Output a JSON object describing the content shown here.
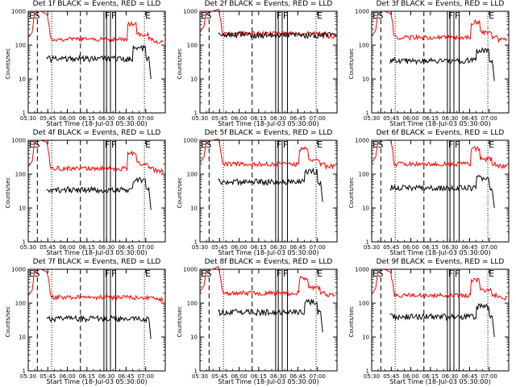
{
  "chart_data": [
    {
      "type": "line",
      "title": "Det 1f BLACK = Events, RED = LLD",
      "xlabel": "Start Time (18-Jul-03 05:30:00)",
      "ylabel": "Counts/sec",
      "x_ticks": [
        "05:30",
        "05:45",
        "06:00",
        "06:15",
        "06:30",
        "06:45",
        "07:00"
      ],
      "y_ticks": [
        "1",
        "10",
        "100",
        "1000"
      ],
      "xlim_min": [
        0,
        105
      ],
      "ylim": [
        1,
        1000
      ],
      "y_scale": "log",
      "markers": [
        {
          "label": "E",
          "t": 0
        },
        {
          "label": "S",
          "t": 4
        }
      ],
      "vlines_dashed": [
        7,
        40
      ],
      "vlines_dotted": [
        18,
        89
      ],
      "vlines_solid": [
        58,
        60,
        63,
        67
      ],
      "end_label": {
        "label": "E",
        "t": 89
      },
      "red_level": 150,
      "black_level": 40,
      "red_peak_t": 79,
      "black_peak_t": 82,
      "black_end_t": 93,
      "series": [
        {
          "name": "Events",
          "color": "#000000"
        },
        {
          "name": "LLD",
          "color": "#ff0000"
        }
      ]
    },
    {
      "type": "line",
      "title": "Det 2f BLACK = Events, RED = LLD",
      "xlabel": "Start Time (18-Jul-03 05:30:00)",
      "ylabel": "Counts/sec",
      "x_ticks": [
        "05:30",
        "05:45",
        "06:00",
        "06:15",
        "06:30",
        "06:45",
        "07:00"
      ],
      "y_ticks": [
        "1",
        "10",
        "100",
        "1000"
      ],
      "xlim_min": [
        0,
        105
      ],
      "ylim": [
        1,
        1000
      ],
      "y_scale": "log",
      "markers": [
        {
          "label": "E",
          "t": 0
        },
        {
          "label": "S",
          "t": 4
        }
      ],
      "vlines_dashed": [
        7,
        40
      ],
      "vlines_dotted": [
        18,
        89
      ],
      "vlines_solid": [
        58,
        60,
        63,
        67
      ],
      "end_label": {
        "label": "E",
        "t": 89
      },
      "red_level": 220,
      "black_level": 200,
      "red_peak_t": 0,
      "black_peak_t": 0,
      "black_end_t": 105,
      "series": [
        {
          "name": "Events",
          "color": "#000000"
        },
        {
          "name": "LLD",
          "color": "#ff0000"
        }
      ]
    },
    {
      "type": "line",
      "title": "Det 3f BLACK = Events, RED = LLD",
      "xlabel": "Start Time (18-Jul-03 05:30:00)",
      "ylabel": "Counts/sec",
      "x_ticks": [
        "05:30",
        "05:45",
        "06:00",
        "06:15",
        "06:30",
        "06:45",
        "07:00"
      ],
      "y_ticks": [
        "1",
        "10",
        "100",
        "1000"
      ],
      "xlim_min": [
        0,
        105
      ],
      "ylim": [
        1,
        1000
      ],
      "y_scale": "log",
      "markers": [
        {
          "label": "E",
          "t": 0
        },
        {
          "label": "S",
          "t": 4
        }
      ],
      "vlines_dashed": [
        7,
        40
      ],
      "vlines_dotted": [
        18,
        89
      ],
      "vlines_solid": [
        58,
        60,
        63,
        67
      ],
      "end_label": {
        "label": "E",
        "t": 89
      },
      "red_level": 170,
      "black_level": 35,
      "red_peak_t": 79,
      "black_peak_t": 82,
      "black_end_t": 93,
      "series": [
        {
          "name": "Events",
          "color": "#000000"
        },
        {
          "name": "LLD",
          "color": "#ff0000"
        }
      ]
    },
    {
      "type": "line",
      "title": "Det 4f BLACK = Events, RED = LLD",
      "xlabel": "Start Time (18-Jul-03 05:30:00)",
      "ylabel": "Counts/sec",
      "x_ticks": [
        "05:30",
        "05:45",
        "06:00",
        "06:15",
        "06:30",
        "06:45",
        "07:00"
      ],
      "y_ticks": [
        "1",
        "10",
        "100",
        "1000"
      ],
      "xlim_min": [
        0,
        105
      ],
      "ylim": [
        1,
        1000
      ],
      "y_scale": "log",
      "markers": [
        {
          "label": "E",
          "t": 0
        },
        {
          "label": "S",
          "t": 4
        }
      ],
      "vlines_dashed": [
        7,
        40
      ],
      "vlines_dotted": [
        18,
        89
      ],
      "vlines_solid": [
        58,
        60,
        63,
        67
      ],
      "end_label": {
        "label": "E",
        "t": 89
      },
      "red_level": 150,
      "black_level": 35,
      "red_peak_t": 79,
      "black_peak_t": 82,
      "black_end_t": 93,
      "series": [
        {
          "name": "Events",
          "color": "#000000"
        },
        {
          "name": "LLD",
          "color": "#ff0000"
        }
      ]
    },
    {
      "type": "line",
      "title": "Det 5f BLACK = Events, RED = LLD",
      "xlabel": "Start Time (18-Jul-03 05:30:00)",
      "ylabel": "Counts/sec",
      "x_ticks": [
        "05:30",
        "05:45",
        "06:00",
        "06:15",
        "06:30",
        "06:45",
        "07:00"
      ],
      "y_ticks": [
        "1",
        "10",
        "100",
        "1000"
      ],
      "xlim_min": [
        0,
        105
      ],
      "ylim": [
        1,
        1000
      ],
      "y_scale": "log",
      "markers": [
        {
          "label": "E",
          "t": 0
        },
        {
          "label": "S",
          "t": 4
        }
      ],
      "vlines_dashed": [
        7,
        40
      ],
      "vlines_dotted": [
        18,
        89
      ],
      "vlines_solid": [
        58,
        60,
        63,
        67
      ],
      "end_label": {
        "label": "E",
        "t": 89
      },
      "red_level": 200,
      "black_level": 60,
      "red_peak_t": 79,
      "black_peak_t": 82,
      "black_end_t": 93,
      "series": [
        {
          "name": "Events",
          "color": "#000000"
        },
        {
          "name": "LLD",
          "color": "#ff0000"
        }
      ]
    },
    {
      "type": "line",
      "title": "Det 6f BLACK = Events, RED = LLD",
      "xlabel": "Start Time (18-Jul-03 05:30:00)",
      "ylabel": "Counts/sec",
      "x_ticks": [
        "05:30",
        "05:45",
        "06:00",
        "06:15",
        "06:30",
        "06:45",
        "07:00"
      ],
      "y_ticks": [
        "1",
        "10",
        "100",
        "1000"
      ],
      "xlim_min": [
        0,
        105
      ],
      "ylim": [
        1,
        1000
      ],
      "y_scale": "log",
      "markers": [
        {
          "label": "E",
          "t": 0
        },
        {
          "label": "S",
          "t": 4
        }
      ],
      "vlines_dashed": [
        7,
        40
      ],
      "vlines_dotted": [
        18,
        89
      ],
      "vlines_solid": [
        58,
        60,
        63,
        67
      ],
      "end_label": {
        "label": "E",
        "t": 89
      },
      "red_level": 200,
      "black_level": 40,
      "red_peak_t": 79,
      "black_peak_t": 82,
      "black_end_t": 93,
      "series": [
        {
          "name": "Events",
          "color": "#000000"
        },
        {
          "name": "LLD",
          "color": "#ff0000"
        }
      ]
    },
    {
      "type": "line",
      "title": "Det 7f BLACK = Events, RED = LLD",
      "xlabel": "Start Time (18-Jul-03 05:30:00)",
      "ylabel": "Counts/sec",
      "x_ticks": [
        "05:30",
        "05:45",
        "06:00",
        "06:15",
        "06:30",
        "06:45",
        "07:00"
      ],
      "y_ticks": [
        "1",
        "10",
        "100",
        "1000"
      ],
      "xlim_min": [
        0,
        105
      ],
      "ylim": [
        1,
        1000
      ],
      "y_scale": "log",
      "markers": [
        {
          "label": "E",
          "t": 0
        },
        {
          "label": "S",
          "t": 4
        }
      ],
      "vlines_dashed": [
        7,
        40
      ],
      "vlines_dotted": [
        18,
        89
      ],
      "vlines_solid": [
        58,
        60,
        63,
        67
      ],
      "end_label": {
        "label": "E",
        "t": 89
      },
      "red_level": 150,
      "black_level": 35,
      "red_peak_t": 0,
      "black_peak_t": 0,
      "black_end_t": 93,
      "series": [
        {
          "name": "Events",
          "color": "#000000"
        },
        {
          "name": "LLD",
          "color": "#ff0000"
        }
      ]
    },
    {
      "type": "line",
      "title": "Det 8f BLACK = Events, RED = LLD",
      "xlabel": "Start Time (18-Jul-03 05:30:00)",
      "ylabel": "Counts/sec",
      "x_ticks": [
        "05:30",
        "05:45",
        "06:00",
        "06:15",
        "06:30",
        "06:45",
        "07:00"
      ],
      "y_ticks": [
        "1",
        "10",
        "100",
        "1000"
      ],
      "xlim_min": [
        0,
        105
      ],
      "ylim": [
        1,
        1000
      ],
      "y_scale": "log",
      "markers": [
        {
          "label": "E",
          "t": 0
        },
        {
          "label": "S",
          "t": 4
        }
      ],
      "vlines_dashed": [
        7,
        40
      ],
      "vlines_dotted": [
        18,
        89
      ],
      "vlines_solid": [
        58,
        60,
        63,
        67
      ],
      "end_label": {
        "label": "E",
        "t": 89
      },
      "red_level": 200,
      "black_level": 55,
      "red_peak_t": 79,
      "black_peak_t": 82,
      "black_end_t": 93,
      "series": [
        {
          "name": "Events",
          "color": "#000000"
        },
        {
          "name": "LLD",
          "color": "#ff0000"
        }
      ]
    },
    {
      "type": "line",
      "title": "Det 9f BLACK = Events, RED = LLD",
      "xlabel": "Start Time (18-Jul-03 05:30:00)",
      "ylabel": "Counts/sec",
      "x_ticks": [
        "05:30",
        "05:45",
        "06:00",
        "06:15",
        "06:30",
        "06:45",
        "07:00"
      ],
      "y_ticks": [
        "1",
        "10",
        "100",
        "1000"
      ],
      "xlim_min": [
        0,
        105
      ],
      "ylim": [
        1,
        1000
      ],
      "y_scale": "log",
      "markers": [
        {
          "label": "E",
          "t": 0
        },
        {
          "label": "S",
          "t": 4
        }
      ],
      "vlines_dashed": [
        7,
        40
      ],
      "vlines_dotted": [
        18,
        89
      ],
      "vlines_solid": [
        58,
        60,
        63,
        67
      ],
      "end_label": {
        "label": "E",
        "t": 89
      },
      "red_level": 170,
      "black_level": 40,
      "red_peak_t": 79,
      "black_peak_t": 82,
      "black_end_t": 93,
      "series": [
        {
          "name": "Events",
          "color": "#000000"
        },
        {
          "name": "LLD",
          "color": "#ff0000"
        }
      ]
    }
  ]
}
